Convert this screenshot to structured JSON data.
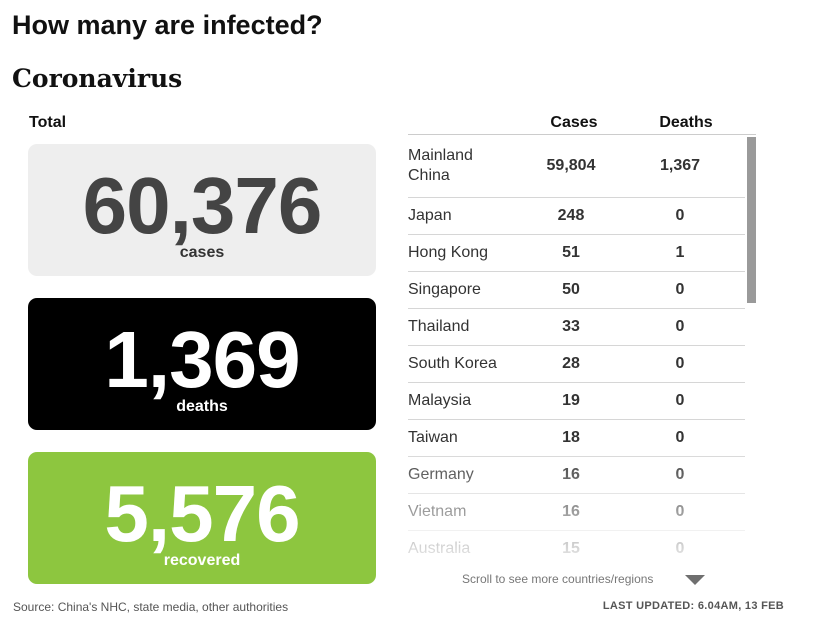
{
  "headline": "How many are infected?",
  "subhead": "Coronavirus",
  "total_label": "Total",
  "cards": {
    "cases": {
      "value": "60,376",
      "label": "cases"
    },
    "deaths": {
      "value": "1,369",
      "label": "deaths"
    },
    "recovered": {
      "value": "5,576",
      "label": "recovered"
    }
  },
  "colors": {
    "cases_card": "#eeeeee",
    "deaths_card": "#000000",
    "recovered_card": "#8dc63f"
  },
  "table": {
    "headers": {
      "cases": "Cases",
      "deaths": "Deaths"
    },
    "rows": [
      {
        "country": "Mainland China",
        "cases": "59,804",
        "deaths": "1,367"
      },
      {
        "country": "Japan",
        "cases": "248",
        "deaths": "0"
      },
      {
        "country": "Hong Kong",
        "cases": "51",
        "deaths": "1"
      },
      {
        "country": "Singapore",
        "cases": "50",
        "deaths": "0"
      },
      {
        "country": "Thailand",
        "cases": "33",
        "deaths": "0"
      },
      {
        "country": "South Korea",
        "cases": "28",
        "deaths": "0"
      },
      {
        "country": "Malaysia",
        "cases": "19",
        "deaths": "0"
      },
      {
        "country": "Taiwan",
        "cases": "18",
        "deaths": "0"
      },
      {
        "country": "Germany",
        "cases": "16",
        "deaths": "0"
      },
      {
        "country": "Vietnam",
        "cases": "16",
        "deaths": "0"
      },
      {
        "country": "Australia",
        "cases": "15",
        "deaths": "0"
      }
    ],
    "scroll_hint": "Scroll to see more countries/regions",
    "scroll_icon": "chevron-down-icon"
  },
  "footer": {
    "source": "Source: China's NHC, state media, other authorities",
    "updated": "LAST UPDATED: 6.04AM, 13 FEB"
  }
}
